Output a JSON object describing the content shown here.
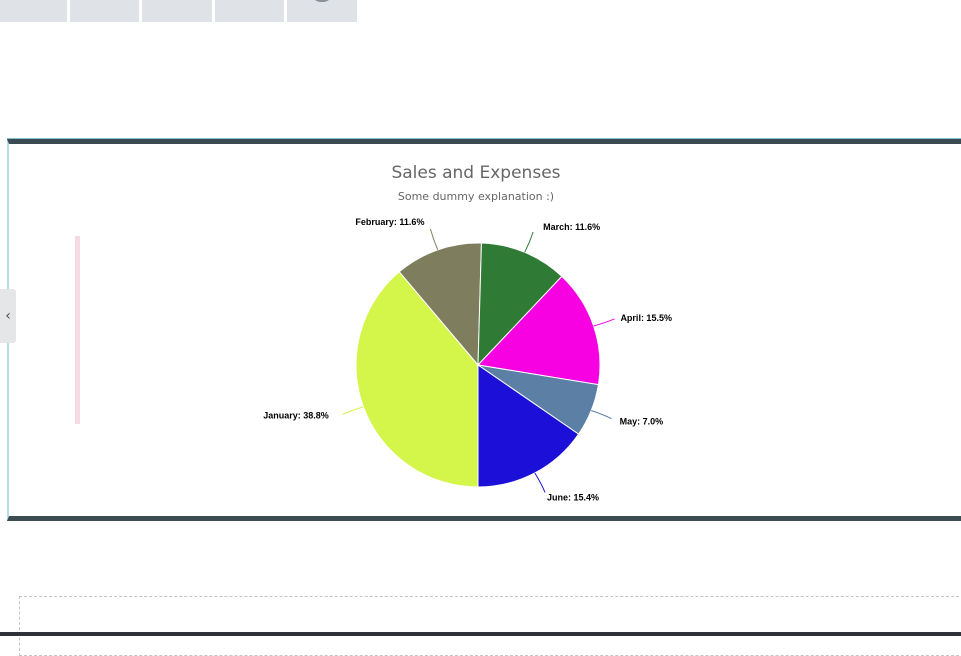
{
  "chart_data": {
    "type": "pie",
    "title": "Sales and Expenses",
    "subtitle": "Some dummy explanation :)",
    "slices": [
      {
        "name": "January",
        "value": 38.8,
        "label": "January: 38.8%",
        "color": "#d4f54a"
      },
      {
        "name": "February",
        "value": 11.6,
        "label": "February: 11.6%",
        "color": "#7e7e5f"
      },
      {
        "name": "March",
        "value": 11.6,
        "label": "March: 11.6%",
        "color": "#2f7a34"
      },
      {
        "name": "April",
        "value": 15.5,
        "label": "April: 15.5%",
        "color": "#f700e2"
      },
      {
        "name": "May",
        "value": 7.0,
        "label": "May: 7.0%",
        "color": "#5b7fa5"
      },
      {
        "name": "June",
        "value": 15.4,
        "label": "June: 15.4%",
        "color": "#1c10d8"
      }
    ]
  },
  "ui": {
    "left_handle_icon": "chevron-left-icon",
    "left_handle_glyph": "‹",
    "frame_border_color": "#3b4b52",
    "tab_color": "#dfe3e7"
  }
}
